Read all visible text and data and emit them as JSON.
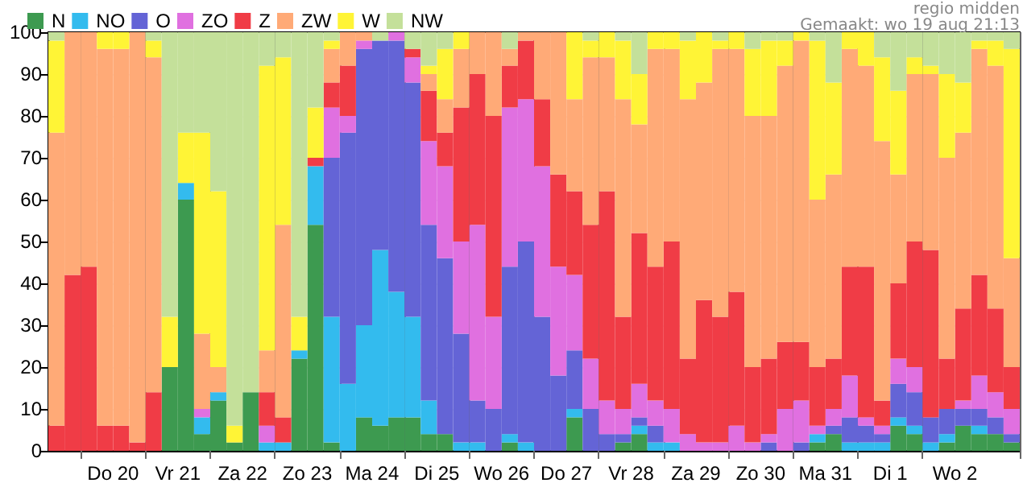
{
  "chart_data": {
    "type": "bar",
    "stacked": true,
    "categories": [
      null,
      null,
      null,
      "Do 20",
      null,
      null,
      null,
      "Vr 21",
      null,
      null,
      null,
      "Za 22",
      null,
      null,
      null,
      "Zo 23",
      null,
      null,
      null,
      "Ma 24",
      null,
      null,
      null,
      "Di 25",
      null,
      null,
      null,
      "Wo 26",
      null,
      null,
      null,
      "Do 27",
      null,
      null,
      null,
      "Vr 28",
      null,
      null,
      null,
      "Za 29",
      null,
      null,
      null,
      "Zo 30",
      null,
      null,
      null,
      "Ma 31",
      null,
      null,
      null,
      "Di 1",
      null,
      null,
      null,
      "Wo 2",
      null,
      null,
      null,
      null
    ],
    "series": [
      {
        "name": "N",
        "color": "#3d9a50",
        "values": [
          0,
          0,
          0,
          0,
          0,
          0,
          0,
          20,
          60,
          4,
          12,
          2,
          14,
          0,
          0,
          22,
          54,
          2,
          0,
          8,
          6,
          8,
          8,
          4,
          4,
          0,
          0,
          0,
          2,
          0,
          0,
          0,
          8,
          0,
          0,
          2,
          4,
          0,
          0,
          0,
          0,
          0,
          0,
          0,
          0,
          0,
          0,
          2,
          4,
          0,
          0,
          0,
          6,
          4,
          0,
          2,
          6,
          4,
          4,
          2
        ]
      },
      {
        "name": "NO",
        "color": "#33bbee",
        "values": [
          0,
          0,
          0,
          0,
          0,
          0,
          0,
          0,
          4,
          4,
          2,
          0,
          0,
          2,
          2,
          2,
          14,
          30,
          16,
          22,
          42,
          30,
          24,
          8,
          0,
          2,
          2,
          0,
          2,
          2,
          0,
          0,
          2,
          0,
          0,
          0,
          2,
          2,
          2,
          0,
          0,
          0,
          0,
          0,
          0,
          0,
          0,
          2,
          0,
          2,
          2,
          2,
          2,
          2,
          2,
          2,
          0,
          2,
          0,
          0
        ]
      },
      {
        "name": "O",
        "color": "#6464d6",
        "values": [
          0,
          0,
          0,
          0,
          0,
          0,
          0,
          0,
          0,
          0,
          0,
          0,
          0,
          0,
          0,
          0,
          0,
          38,
          60,
          66,
          50,
          60,
          56,
          42,
          42,
          26,
          10,
          10,
          40,
          48,
          32,
          18,
          14,
          10,
          4,
          2,
          2,
          4,
          0,
          0,
          0,
          0,
          0,
          0,
          2,
          0,
          2,
          0,
          2,
          6,
          4,
          2,
          8,
          8,
          6,
          6,
          4,
          4,
          4,
          2
        ]
      },
      {
        "name": "ZO",
        "color": "#e070e0",
        "values": [
          0,
          0,
          0,
          0,
          0,
          0,
          0,
          0,
          0,
          2,
          0,
          0,
          0,
          4,
          0,
          0,
          0,
          12,
          4,
          2,
          0,
          2,
          6,
          20,
          22,
          22,
          42,
          22,
          38,
          34,
          36,
          26,
          18,
          12,
          8,
          6,
          8,
          6,
          8,
          4,
          2,
          2,
          6,
          2,
          2,
          10,
          10,
          2,
          4,
          10,
          2,
          2,
          6,
          6,
          0,
          0,
          2,
          8,
          6,
          6
        ]
      },
      {
        "name": "Z",
        "color": "#f03c46",
        "values": [
          6,
          42,
          44,
          6,
          6,
          2,
          14,
          0,
          0,
          0,
          0,
          0,
          0,
          8,
          6,
          0,
          2,
          6,
          12,
          0,
          0,
          0,
          2,
          12,
          8,
          32,
          36,
          48,
          10,
          14,
          16,
          22,
          20,
          32,
          50,
          22,
          36,
          32,
          40,
          18,
          34,
          30,
          32,
          18,
          18,
          16,
          14,
          14,
          12,
          26,
          36,
          6,
          18,
          30,
          40,
          12,
          22,
          24,
          20,
          10
        ]
      },
      {
        "name": "ZW",
        "color": "#ffaa77",
        "values": [
          70,
          58,
          56,
          90,
          90,
          98,
          80,
          0,
          0,
          18,
          6,
          0,
          0,
          10,
          46,
          0,
          0,
          8,
          8,
          2,
          0,
          0,
          0,
          4,
          8,
          14,
          10,
          20,
          4,
          2,
          16,
          34,
          22,
          40,
          32,
          52,
          26,
          52,
          46,
          62,
          52,
          64,
          58,
          60,
          58,
          66,
          72,
          40,
          44,
          52,
          48,
          62,
          26,
          40,
          42,
          48,
          42,
          54,
          58,
          26
        ]
      },
      {
        "name": "W",
        "color": "#fff436",
        "values": [
          22,
          0,
          0,
          4,
          4,
          0,
          4,
          12,
          12,
          48,
          42,
          4,
          0,
          68,
          40,
          8,
          12,
          2,
          0,
          0,
          0,
          0,
          0,
          2,
          12,
          4,
          0,
          0,
          0,
          0,
          0,
          0,
          16,
          4,
          6,
          14,
          12,
          4,
          4,
          14,
          12,
          2,
          4,
          16,
          18,
          6,
          2,
          38,
          22,
          4,
          8,
          20,
          20,
          4,
          2,
          20,
          12,
          2,
          6,
          50
        ]
      },
      {
        "name": "NW",
        "color": "#c4e09a",
        "values": [
          2,
          0,
          0,
          0,
          0,
          0,
          2,
          68,
          24,
          24,
          38,
          94,
          86,
          8,
          6,
          68,
          18,
          2,
          0,
          0,
          2,
          0,
          4,
          8,
          4,
          0,
          0,
          0,
          4,
          0,
          0,
          0,
          0,
          2,
          0,
          2,
          10,
          0,
          0,
          2,
          0,
          2,
          0,
          4,
          2,
          2,
          0,
          2,
          12,
          0,
          0,
          6,
          14,
          6,
          8,
          10,
          12,
          2,
          2,
          4
        ]
      }
    ],
    "ylim": [
      0,
      100
    ],
    "yticks": [
      0,
      10,
      20,
      30,
      40,
      50,
      60,
      70,
      80,
      90,
      100
    ],
    "grid": true,
    "legend": "top",
    "annotations": [
      "regio midden",
      "Gemaakt: wo 19 aug 21:13"
    ]
  }
}
